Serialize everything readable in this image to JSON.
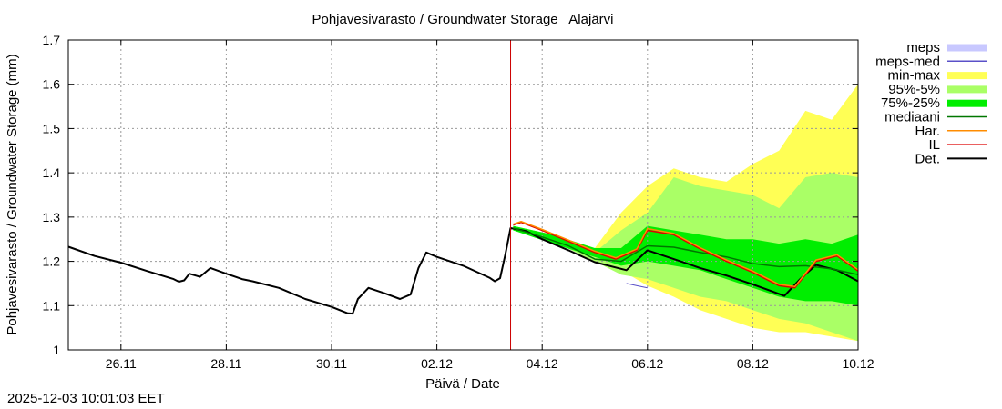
{
  "chart_data": {
    "type": "line",
    "title": "Pohjavesivarasto / Groundwater Storage   Alajärvi",
    "xlabel": "Päivä / Date",
    "ylabel": "Pohjavesivarasto / Groundwater Storage (mm)",
    "x_unit": "days since 25.11 00:00",
    "xlim": [
      0,
      15
    ],
    "ylim": [
      1.0,
      1.7
    ],
    "x_ticks": [
      {
        "x": 1,
        "label": "26.11"
      },
      {
        "x": 3,
        "label": "28.11"
      },
      {
        "x": 5,
        "label": "30.11"
      },
      {
        "x": 7,
        "label": "02.12"
      },
      {
        "x": 9,
        "label": "04.12"
      },
      {
        "x": 11,
        "label": "06.12"
      },
      {
        "x": 13,
        "label": "08.12"
      },
      {
        "x": 15,
        "label": "10.12"
      }
    ],
    "y_ticks": [
      {
        "y": 1.0,
        "label": "1"
      },
      {
        "y": 1.1,
        "label": "1.1"
      },
      {
        "y": 1.2,
        "label": "1.2"
      },
      {
        "y": 1.3,
        "label": "1.3"
      },
      {
        "y": 1.4,
        "label": "1.4"
      },
      {
        "y": 1.5,
        "label": "1.5"
      },
      {
        "y": 1.6,
        "label": "1.6"
      },
      {
        "y": 1.7,
        "label": "1.7"
      }
    ],
    "grid": true,
    "legend_position": "outside-right-top",
    "now_marker": {
      "x": 8.4,
      "color": "#cc0000"
    },
    "legend": [
      {
        "key": "meps",
        "label": "meps",
        "kind": "band",
        "color": "#c8c8ff"
      },
      {
        "key": "meps_med",
        "label": "meps-med",
        "kind": "line",
        "color": "#5a50c8"
      },
      {
        "key": "minmax",
        "label": "min-max",
        "kind": "band",
        "color": "#ffff55"
      },
      {
        "key": "p95_5",
        "label": "95%-5%",
        "kind": "band",
        "color": "#aaff66"
      },
      {
        "key": "p75_25",
        "label": "75%-25%",
        "kind": "band",
        "color": "#00ee00"
      },
      {
        "key": "median",
        "label": "mediaani",
        "kind": "line",
        "color": "#007700"
      },
      {
        "key": "har",
        "label": "Har.",
        "kind": "line",
        "color": "#ff8c00"
      },
      {
        "key": "il",
        "label": "IL",
        "kind": "line",
        "color": "#dd0000"
      },
      {
        "key": "det",
        "label": "Det.",
        "kind": "line",
        "color": "#000000"
      }
    ],
    "bands": [
      {
        "name": "min-max",
        "color": "#ffff55",
        "x": [
          8.45,
          9.2,
          10.0,
          10.5,
          11.0,
          11.5,
          12.0,
          12.5,
          13.0,
          13.5,
          14.0,
          14.5,
          15.0
        ],
        "low": [
          1.27,
          1.245,
          1.205,
          1.18,
          1.145,
          1.12,
          1.09,
          1.07,
          1.05,
          1.04,
          1.04,
          1.03,
          1.02
        ],
        "high": [
          1.28,
          1.26,
          1.23,
          1.31,
          1.37,
          1.41,
          1.39,
          1.38,
          1.42,
          1.45,
          1.54,
          1.52,
          1.6
        ]
      },
      {
        "name": "95%-5%",
        "color": "#aaff66",
        "x": [
          8.45,
          9.2,
          10.0,
          10.5,
          11.0,
          11.5,
          12.0,
          12.5,
          13.0,
          13.5,
          14.0,
          14.5,
          15.0
        ],
        "low": [
          1.27,
          1.245,
          1.2,
          1.17,
          1.16,
          1.14,
          1.12,
          1.11,
          1.09,
          1.07,
          1.06,
          1.04,
          1.02
        ],
        "high": [
          1.28,
          1.26,
          1.22,
          1.27,
          1.31,
          1.39,
          1.37,
          1.36,
          1.35,
          1.32,
          1.39,
          1.4,
          1.39
        ]
      },
      {
        "name": "75%-25%",
        "color": "#00ee00",
        "x": [
          8.45,
          9.2,
          10.0,
          10.5,
          11.0,
          11.5,
          12.0,
          12.5,
          13.0,
          13.5,
          14.0,
          14.5,
          15.0
        ],
        "low": [
          1.27,
          1.24,
          1.21,
          1.19,
          1.2,
          1.19,
          1.18,
          1.16,
          1.14,
          1.12,
          1.11,
          1.11,
          1.1
        ],
        "high": [
          1.28,
          1.26,
          1.23,
          1.23,
          1.28,
          1.27,
          1.26,
          1.25,
          1.25,
          1.24,
          1.25,
          1.24,
          1.26
        ]
      }
    ],
    "series": [
      {
        "name": "Det.",
        "color": "#000000",
        "width": 2,
        "x": [
          0,
          0.5,
          1.0,
          1.5,
          2.0,
          2.1,
          2.2,
          2.3,
          2.5,
          2.7,
          3.0,
          3.3,
          3.5,
          4.0,
          4.5,
          5.0,
          5.3,
          5.4,
          5.5,
          5.7,
          6.0,
          6.3,
          6.5,
          6.65,
          6.8,
          7.0,
          7.5,
          8.0,
          8.1,
          8.2,
          8.3,
          8.4,
          8.7,
          9.0,
          9.5,
          10.0,
          10.6,
          11.0,
          11.5,
          12.0,
          12.5,
          13.0,
          13.3,
          13.6,
          13.9,
          14.2,
          14.6,
          15.0
        ],
        "y": [
          1.233,
          1.212,
          1.197,
          1.178,
          1.16,
          1.154,
          1.157,
          1.172,
          1.165,
          1.185,
          1.172,
          1.16,
          1.155,
          1.14,
          1.115,
          1.097,
          1.083,
          1.082,
          1.115,
          1.14,
          1.128,
          1.115,
          1.125,
          1.185,
          1.22,
          1.21,
          1.19,
          1.163,
          1.155,
          1.162,
          1.215,
          1.275,
          1.268,
          1.25,
          1.225,
          1.198,
          1.18,
          1.225,
          1.205,
          1.185,
          1.168,
          1.148,
          1.135,
          1.122,
          1.16,
          1.192,
          1.18,
          1.155
        ]
      },
      {
        "name": "mediaani",
        "color": "#007700",
        "width": 1.5,
        "x": [
          8.45,
          9.0,
          9.5,
          10.0,
          10.5,
          11.0,
          11.5,
          12.0,
          12.5,
          13.0,
          13.5,
          14.0,
          14.5,
          15.0
        ],
        "y": [
          1.275,
          1.255,
          1.235,
          1.205,
          1.2,
          1.235,
          1.232,
          1.22,
          1.21,
          1.195,
          1.188,
          1.19,
          1.183,
          1.17
        ]
      },
      {
        "name": "IL",
        "color": "#dd0000",
        "width": 1.5,
        "x": [
          8.45,
          8.6,
          9.0,
          9.5,
          10.0,
          10.4,
          10.8,
          11.0,
          11.5,
          12.0,
          12.5,
          13.0,
          13.5,
          13.8,
          14.2,
          14.6,
          15.0
        ],
        "y": [
          1.282,
          1.288,
          1.27,
          1.245,
          1.22,
          1.205,
          1.225,
          1.27,
          1.26,
          1.228,
          1.2,
          1.175,
          1.145,
          1.14,
          1.2,
          1.212,
          1.178
        ]
      },
      {
        "name": "Har.",
        "color": "#ff8c00",
        "width": 1.5,
        "x": [
          8.45,
          8.6,
          9.0,
          9.5,
          10.0,
          10.4,
          10.8,
          11.0,
          11.5,
          12.0,
          12.5,
          13.0,
          13.5,
          13.8,
          14.2,
          14.6,
          15.0
        ],
        "y": [
          1.284,
          1.29,
          1.272,
          1.248,
          1.223,
          1.208,
          1.228,
          1.274,
          1.263,
          1.231,
          1.203,
          1.178,
          1.148,
          1.143,
          1.203,
          1.215,
          1.181
        ]
      },
      {
        "name": "meps-med",
        "color": "#5a50c8",
        "width": 1,
        "x": [
          10.6,
          10.8,
          11.0
        ],
        "y": [
          1.15,
          1.145,
          1.14
        ]
      }
    ]
  },
  "footer": {
    "timestamp": "2025-12-03 10:01:03 EET"
  }
}
